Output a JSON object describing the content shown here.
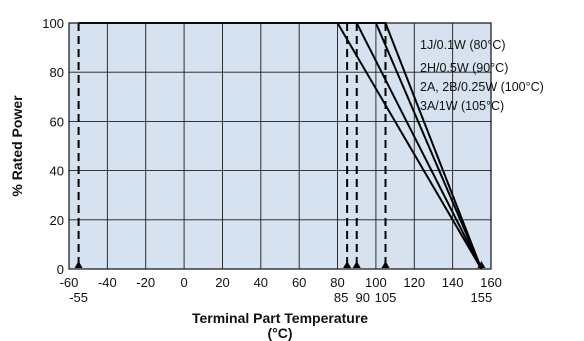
{
  "chart_data": {
    "type": "line",
    "title": "",
    "xlabel": "Terminal Part Temperature",
    "xlabel_unit": "(°C)",
    "ylabel": "% Rated Power",
    "xlim": [
      -60,
      160
    ],
    "ylim": [
      0,
      100
    ],
    "x_ticks": [
      -60,
      -40,
      -20,
      0,
      20,
      40,
      60,
      80,
      100,
      120,
      140,
      160
    ],
    "y_ticks": [
      0,
      20,
      40,
      60,
      80,
      100
    ],
    "grid": true,
    "colors": {
      "plot_bg": "#d6e2f0",
      "grid": "#1a1a1a",
      "line": "#000000"
    },
    "series": [
      {
        "name": "1J/0.1W (80°C)",
        "x": [
          -55,
          80,
          155
        ],
        "y": [
          100,
          100,
          0
        ]
      },
      {
        "name": "2H/0.5W (90°C)",
        "x": [
          -55,
          90,
          155
        ],
        "y": [
          100,
          100,
          0
        ]
      },
      {
        "name": "2A, 2B/0.25W (100°C)",
        "x": [
          -55,
          100,
          155
        ],
        "y": [
          100,
          100,
          0
        ]
      },
      {
        "name": "3A/1W (105°C)",
        "x": [
          -55,
          105,
          155
        ],
        "y": [
          100,
          100,
          0
        ]
      }
    ],
    "markers": [
      {
        "x": -55,
        "label": "-55",
        "dashed": true
      },
      {
        "x": 85,
        "label": "85",
        "dashed": true
      },
      {
        "x": 90,
        "label": "90",
        "dashed": true
      },
      {
        "x": 105,
        "label": "105",
        "dashed": true
      },
      {
        "x": 155,
        "label": "155",
        "dashed": false
      }
    ],
    "legend_placement": "top-right"
  }
}
